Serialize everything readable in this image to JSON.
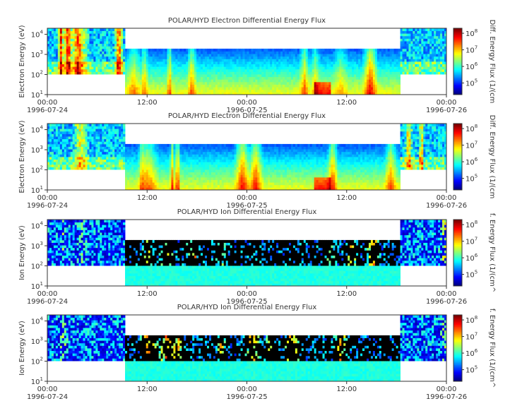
{
  "chart_data": [
    {
      "type": "heatmap",
      "title": "POLAR/HYD  Electron Differential Energy Flux",
      "ylabel": "Electron Energy (eV)",
      "colorbar_label": "Diff. Energy Flux (1/(cm",
      "species": "electron",
      "seed": 11,
      "x_ticks": [
        {
          "time": "00:00",
          "date": "1996-07-24"
        },
        {
          "time": "12:00",
          "date": ""
        },
        {
          "time": "00:00",
          "date": "1996-07-25"
        },
        {
          "time": "12:00",
          "date": ""
        },
        {
          "time": "00:00",
          "date": "1996-07-26"
        }
      ],
      "xlim_hours": [
        0,
        48
      ],
      "y_scale": "log",
      "ylim_eV": [
        10,
        20000
      ],
      "y_ticks": [
        "10^4",
        "10^3",
        "10^2",
        "10^1"
      ],
      "colorbar_ticks": [
        "10^8",
        "10^7",
        "10^6",
        "10^5"
      ],
      "colorbar_range": [
        20000,
        200000000
      ],
      "data_gap_hours": [
        [
          9.3,
          42.4
        ]
      ],
      "colorscale": [
        "#00007f",
        "#0000ff",
        "#007fff",
        "#00ffff",
        "#7fff7f",
        "#ffff00",
        "#ff7f00",
        "#ff0000",
        "#7f0000"
      ]
    },
    {
      "type": "heatmap",
      "title": "POLAR/HYD  Electron Differential Energy Flux",
      "ylabel": "Electron Energy (eV)",
      "colorbar_label": "Diff. Energy Flux (1/(cm",
      "species": "electron",
      "seed": 23,
      "x_ticks": [
        {
          "time": "00:00",
          "date": "1996-07-24"
        },
        {
          "time": "12:00",
          "date": ""
        },
        {
          "time": "00:00",
          "date": "1996-07-25"
        },
        {
          "time": "12:00",
          "date": ""
        },
        {
          "time": "00:00",
          "date": "1996-07-26"
        }
      ],
      "xlim_hours": [
        0,
        48
      ],
      "y_scale": "log",
      "ylim_eV": [
        10,
        20000
      ],
      "y_ticks": [
        "10^4",
        "10^3",
        "10^2",
        "10^1"
      ],
      "colorbar_ticks": [
        "10^8",
        "10^7",
        "10^6",
        "10^5"
      ],
      "colorbar_range": [
        20000,
        200000000
      ],
      "data_gap_hours": [
        [
          9.3,
          42.4
        ]
      ],
      "colorscale": [
        "#00007f",
        "#0000ff",
        "#007fff",
        "#00ffff",
        "#7fff7f",
        "#ffff00",
        "#ff7f00",
        "#ff0000",
        "#7f0000"
      ]
    },
    {
      "type": "heatmap",
      "title": "POLAR/HYD  Ion Differential Energy Flux",
      "ylabel": "Ion Energy (eV)",
      "colorbar_label": "f. Energy Flux (1/(cm^",
      "species": "ion",
      "seed": 37,
      "x_ticks": [
        {
          "time": "00:00",
          "date": "1996-07-24"
        },
        {
          "time": "12:00",
          "date": ""
        },
        {
          "time": "00:00",
          "date": "1996-07-25"
        },
        {
          "time": "12:00",
          "date": ""
        },
        {
          "time": "00:00",
          "date": "1996-07-26"
        }
      ],
      "xlim_hours": [
        0,
        48
      ],
      "y_scale": "log",
      "ylim_eV": [
        10,
        20000
      ],
      "y_ticks": [
        "10^4",
        "10^3",
        "10^2",
        "10^1"
      ],
      "colorbar_ticks": [
        "10^8",
        "10^7",
        "10^6",
        "10^5"
      ],
      "colorbar_range": [
        20000,
        200000000
      ],
      "data_gap_hours": [
        [
          9.3,
          42.4
        ]
      ],
      "colorscale": [
        "#00007f",
        "#0000ff",
        "#007fff",
        "#00ffff",
        "#7fff7f",
        "#ffff00",
        "#ff7f00",
        "#ff0000",
        "#7f0000"
      ]
    },
    {
      "type": "heatmap",
      "title": "POLAR/HYD  Ion Differential Energy Flux",
      "ylabel": "Ion Energy (eV)",
      "colorbar_label": "f. Energy Flux (1/(cm^",
      "species": "ion",
      "seed": 51,
      "x_ticks": [
        {
          "time": "00:00",
          "date": "1996-07-24"
        },
        {
          "time": "12:00",
          "date": ""
        },
        {
          "time": "00:00",
          "date": "1996-07-25"
        },
        {
          "time": "12:00",
          "date": ""
        },
        {
          "time": "00:00",
          "date": "1996-07-26"
        }
      ],
      "xlim_hours": [
        0,
        48
      ],
      "y_scale": "log",
      "ylim_eV": [
        10,
        20000
      ],
      "y_ticks": [
        "10^4",
        "10^3",
        "10^2",
        "10^1"
      ],
      "colorbar_ticks": [
        "10^8",
        "10^7",
        "10^6",
        "10^5"
      ],
      "colorbar_range": [
        20000,
        200000000
      ],
      "data_gap_hours": [
        [
          9.3,
          42.4
        ]
      ],
      "colorscale": [
        "#00007f",
        "#0000ff",
        "#007fff",
        "#00ffff",
        "#7fff7f",
        "#ffff00",
        "#ff7f00",
        "#ff0000",
        "#7f0000"
      ]
    }
  ]
}
